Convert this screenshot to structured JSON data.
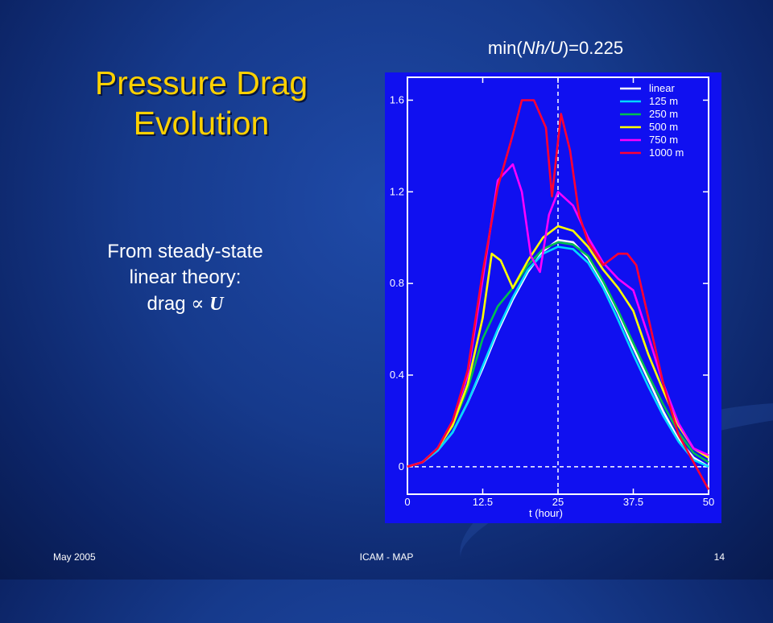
{
  "slide": {
    "title_line1": "Pressure Drag",
    "title_line2": "Evolution",
    "body_line1": "From steady-state",
    "body_line2": "linear theory:",
    "body_drag": "drag",
    "body_symbol": "∝",
    "body_var": "U",
    "chart_caption_prefix": "min(",
    "chart_caption_var": "Nh/U",
    "chart_caption_suffix": ")=0.225",
    "footer_left": "May 2005",
    "footer_center": "ICAM - MAP",
    "footer_right": "14"
  },
  "colors": {
    "title": "#ffd100",
    "plot_bg": "#1010f0",
    "linear": "#ffffff",
    "125 m": "#00d8ff",
    "250 m": "#00c050",
    "500 m": "#ffff00",
    "750 m": "#ff00ff",
    "1000 m": "#ff0033"
  },
  "chart_data": {
    "type": "line",
    "title": "min(Nh/U)=0.225",
    "xlabel": "t (hour)",
    "ylabel": "",
    "xlim": [
      0,
      50
    ],
    "ylim": [
      -0.12,
      1.7
    ],
    "xticks": [
      "0",
      "12.5",
      "25",
      "37.5",
      "50"
    ],
    "yticks": [
      "0",
      "0.4",
      "0.8",
      "1.2",
      "1.6"
    ],
    "xtick_values": [
      0,
      12.5,
      25,
      37.5,
      50
    ],
    "ytick_values": [
      0,
      0.4,
      0.8,
      1.2,
      1.6
    ],
    "grid": false,
    "legend_position": "top-right",
    "reference_lines": {
      "vertical_x": 25,
      "horizontal_y": 0
    },
    "series": [
      {
        "name": "linear",
        "color": "#ffffff",
        "x": [
          0,
          2.5,
          5,
          7.5,
          10,
          12.5,
          15,
          17.5,
          20,
          22.5,
          25,
          27.5,
          30,
          32.5,
          35,
          37.5,
          40,
          42.5,
          45,
          47.5,
          50
        ],
        "y": [
          0,
          0.02,
          0.07,
          0.15,
          0.28,
          0.43,
          0.59,
          0.73,
          0.85,
          0.94,
          0.99,
          0.98,
          0.91,
          0.8,
          0.67,
          0.52,
          0.38,
          0.24,
          0.12,
          0.04,
          0.0
        ]
      },
      {
        "name": "125 m",
        "color": "#00d8ff",
        "x": [
          0,
          2.5,
          5,
          7.5,
          10,
          12.5,
          15,
          17.5,
          20,
          22.5,
          25,
          27.5,
          30,
          32.5,
          35,
          37.5,
          40,
          42.5,
          45,
          47.5,
          50
        ],
        "y": [
          0,
          0.02,
          0.07,
          0.15,
          0.28,
          0.44,
          0.6,
          0.74,
          0.86,
          0.93,
          0.96,
          0.95,
          0.89,
          0.78,
          0.64,
          0.49,
          0.35,
          0.22,
          0.11,
          0.03,
          0.0
        ]
      },
      {
        "name": "250 m",
        "color": "#00c050",
        "x": [
          0,
          2.5,
          5,
          7.5,
          10,
          12.5,
          15,
          17.5,
          20,
          22.5,
          25,
          27.5,
          30,
          32.5,
          35,
          37.5,
          40,
          42.5,
          45,
          47.5,
          50
        ],
        "y": [
          0,
          0.02,
          0.08,
          0.18,
          0.34,
          0.56,
          0.7,
          0.78,
          0.88,
          0.95,
          0.98,
          0.97,
          0.92,
          0.81,
          0.68,
          0.54,
          0.4,
          0.27,
          0.15,
          0.06,
          0.02
        ]
      },
      {
        "name": "500 m",
        "color": "#ffff00",
        "x": [
          0,
          2.5,
          5,
          7.5,
          10,
          12.5,
          14,
          15.5,
          17.5,
          20,
          22.5,
          25,
          27.5,
          30,
          32.5,
          35,
          37.5,
          40,
          42.5,
          45,
          47.5,
          50
        ],
        "y": [
          0,
          0.02,
          0.08,
          0.18,
          0.36,
          0.65,
          0.93,
          0.9,
          0.78,
          0.9,
          1.0,
          1.05,
          1.03,
          0.96,
          0.86,
          0.78,
          0.68,
          0.49,
          0.33,
          0.18,
          0.08,
          0.04
        ]
      },
      {
        "name": "750 m",
        "color": "#ff00ff",
        "x": [
          0,
          2.5,
          5,
          7.5,
          10,
          12.5,
          15,
          17.5,
          19,
          20.5,
          22,
          23.5,
          25,
          27.5,
          30,
          32.5,
          35,
          37.5,
          40,
          42.5,
          45,
          47.5,
          50
        ],
        "y": [
          0,
          0.02,
          0.08,
          0.2,
          0.4,
          0.82,
          1.25,
          1.32,
          1.2,
          0.92,
          0.85,
          1.1,
          1.2,
          1.14,
          1.0,
          0.89,
          0.82,
          0.77,
          0.57,
          0.36,
          0.19,
          0.08,
          0.05
        ]
      },
      {
        "name": "1000 m",
        "color": "#ff0033",
        "x": [
          0,
          2.5,
          5,
          7.5,
          10,
          12.5,
          15,
          17.5,
          19,
          21,
          23,
          24,
          25.5,
          27,
          28.5,
          30,
          32.5,
          35,
          36.5,
          38,
          40,
          42.5,
          45,
          47.5,
          50
        ],
        "y": [
          0,
          0.02,
          0.08,
          0.2,
          0.42,
          0.85,
          1.22,
          1.45,
          1.6,
          1.6,
          1.48,
          1.18,
          1.54,
          1.38,
          1.1,
          0.98,
          0.88,
          0.93,
          0.93,
          0.88,
          0.65,
          0.36,
          0.14,
          0.02,
          -0.1
        ]
      }
    ]
  }
}
